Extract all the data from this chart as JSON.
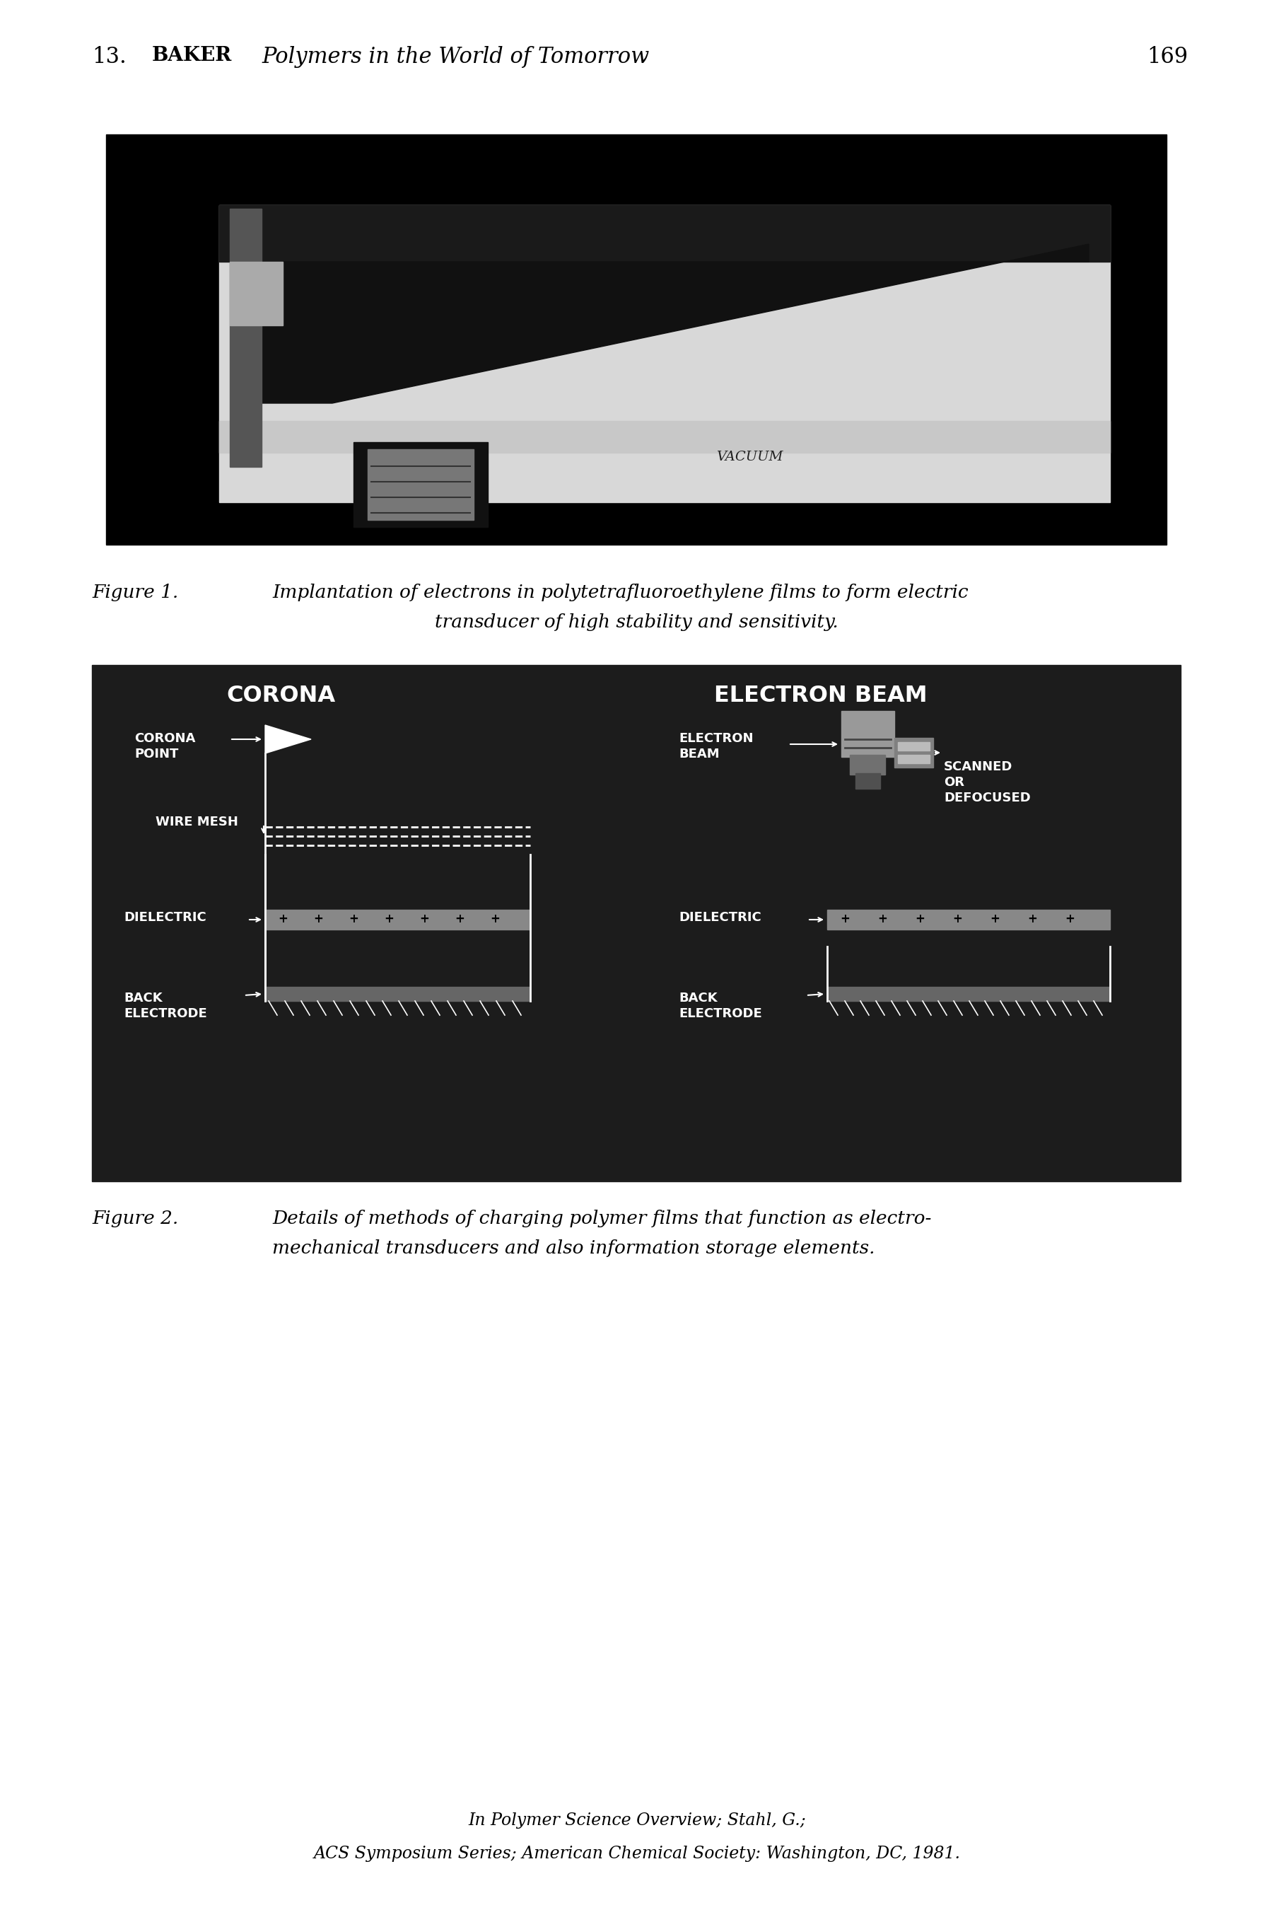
{
  "page_header_num": "13.",
  "page_header_author": "BAKER",
  "page_header_title": "Polymers in the World of Tomorrow",
  "page_number": "169",
  "figure1_cap_label": "Figure 1.",
  "figure1_cap_text1": "Implantation of electrons in polytetrafluoroethylene films to form electric",
  "figure1_cap_text2": "transducer of high stability and sensitivity.",
  "figure2_cap_label": "Figure 2.",
  "figure2_cap_text1": "Details of methods of charging polymer films that function as electro-",
  "figure2_cap_text2": "mechanical transducers and also information storage elements.",
  "footer_line1": "In Polymer Science Overview; Stahl, G.;",
  "footer_line2": "ACS Symposium Series; American Chemical Society: Washington, DC, 1981.",
  "bg_color": "#ffffff",
  "corona_title": "CORONA",
  "eb_title": "ELECTRON BEAM",
  "corona_point_label": "CORONA\nPOINT",
  "wire_mesh_label": "WIRE MESH",
  "dielectric_label": "DIELECTRIC",
  "back_electrode_label": "BACK\nELECTRODE",
  "electron_beam_label": "ELECTRON\nBEAM",
  "scanned_label": "SCANNED\nOR\nDEFOCUSED",
  "vacuum_label": "VACUUM"
}
